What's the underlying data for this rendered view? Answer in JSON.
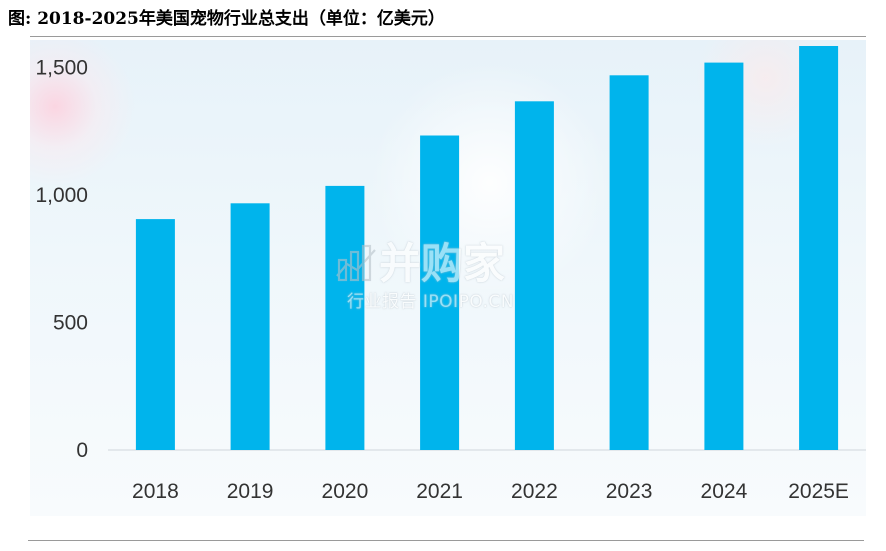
{
  "title": "图: 2018-2025年美国宠物行业总支出（单位：亿美元）",
  "watermark": {
    "brand": "并购家",
    "subtitle": "行业报告 IPOIPO.CN"
  },
  "colors": {
    "bar": "#00b4ec",
    "baseline": "#d0d6dc"
  },
  "chart_data": {
    "type": "bar",
    "title": "图: 2018-2025年美国宠物行业总支出（单位：亿美元）",
    "xlabel": "",
    "ylabel": "",
    "categories": [
      "2018",
      "2019",
      "2020",
      "2021",
      "2022",
      "2023",
      "2024",
      "2025E"
    ],
    "values": [
      906,
      968,
      1036,
      1234,
      1368,
      1470,
      1520,
      1585
    ],
    "ylim": [
      0,
      1585
    ],
    "yticks": [
      0,
      500,
      1000,
      1500
    ],
    "ytick_labels": [
      "0",
      "500",
      "1,000",
      "1,500"
    ],
    "grid": false,
    "legend": "none"
  }
}
